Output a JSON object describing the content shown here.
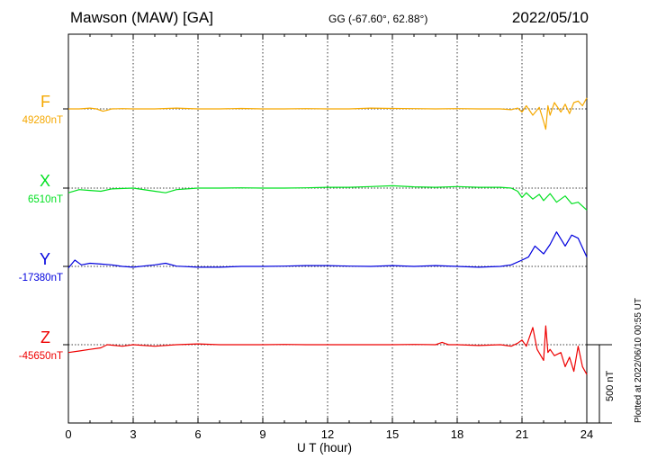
{
  "header": {
    "station": "Mawson (MAW)  [GA]",
    "coords": "GG (-67.60°,  62.88°)",
    "date": "2022/05/10"
  },
  "footer": {
    "xlabel": "U T (hour)",
    "plotted": "Plotted at 2022/06/10 00:55 UT"
  },
  "scale_bar": {
    "label": "500 nT",
    "value_nT": 500
  },
  "colors": {
    "F": "#f5a800",
    "X": "#00e020",
    "Y": "#0000dd",
    "Z": "#ee0000"
  },
  "chart_data": {
    "type": "line",
    "title": "Mawson (MAW)  [GA]",
    "xlabel": "U T (hour)",
    "ylabel": "",
    "xlim": [
      0,
      24
    ],
    "x_ticks": [
      "0",
      "3",
      "6",
      "9",
      "12",
      "15",
      "18",
      "21",
      "24"
    ],
    "grid": "vertical dotted every 3 h; dotted baseline per component",
    "series": [
      {
        "name": "F",
        "baseline_label": "49280nT",
        "baseline_nT": 49280,
        "color": "#f5a800",
        "x": [
          0,
          0.5,
          1,
          1.3,
          1.6,
          1.8,
          2,
          2.5,
          3,
          4,
          5,
          6,
          7,
          8,
          9,
          10,
          11,
          12,
          13,
          14,
          15,
          16,
          17,
          18,
          19,
          20,
          20.5,
          20.8,
          21,
          21.2,
          21.5,
          21.8,
          22,
          22.1,
          22.2,
          22.3,
          22.5,
          22.8,
          23,
          23.2,
          23.4,
          23.6,
          23.8,
          24
        ],
        "values": [
          49280,
          49280,
          49285,
          49280,
          49265,
          49272,
          49280,
          49282,
          49280,
          49280,
          49285,
          49280,
          49280,
          49283,
          49280,
          49280,
          49282,
          49280,
          49280,
          49285,
          49283,
          49282,
          49280,
          49282,
          49280,
          49280,
          49275,
          49285,
          49260,
          49300,
          49240,
          49290,
          49200,
          49150,
          49300,
          49240,
          49320,
          49260,
          49310,
          49250,
          49320,
          49330,
          49300,
          49350
        ]
      },
      {
        "name": "X",
        "baseline_label": "6510nT",
        "baseline_nT": 6510,
        "color": "#00e020",
        "x": [
          0,
          0.5,
          1,
          1.5,
          2,
          3,
          4,
          4.5,
          5,
          6,
          7,
          8,
          9,
          10,
          11,
          12,
          13,
          14,
          15,
          16,
          17,
          18,
          19,
          20,
          20.5,
          20.8,
          21,
          21.2,
          21.5,
          21.8,
          22,
          22.3,
          22.6,
          23,
          23.3,
          23.6,
          24
        ],
        "values": [
          6480,
          6500,
          6495,
          6490,
          6505,
          6510,
          6490,
          6480,
          6500,
          6510,
          6510,
          6512,
          6510,
          6510,
          6512,
          6515,
          6515,
          6520,
          6525,
          6518,
          6515,
          6520,
          6515,
          6515,
          6510,
          6490,
          6450,
          6480,
          6440,
          6470,
          6430,
          6475,
          6420,
          6460,
          6410,
          6420,
          6370
        ]
      },
      {
        "name": "Y",
        "baseline_label": "-17380nT",
        "baseline_nT": -17380,
        "color": "#0000dd",
        "x": [
          0,
          0.3,
          0.6,
          1,
          1.5,
          2,
          2.5,
          3,
          4,
          4.5,
          5,
          6,
          7,
          8,
          9,
          10,
          11,
          12,
          13,
          14,
          15,
          16,
          17,
          18,
          19,
          20,
          20.5,
          21,
          21.3,
          21.6,
          22,
          22.3,
          22.6,
          23,
          23.3,
          23.6,
          24
        ],
        "values": [
          -17390,
          -17340,
          -17370,
          -17360,
          -17365,
          -17370,
          -17380,
          -17385,
          -17370,
          -17360,
          -17378,
          -17385,
          -17385,
          -17380,
          -17380,
          -17378,
          -17375,
          -17375,
          -17378,
          -17380,
          -17375,
          -17380,
          -17375,
          -17380,
          -17385,
          -17380,
          -17370,
          -17340,
          -17320,
          -17250,
          -17300,
          -17240,
          -17160,
          -17250,
          -17180,
          -17200,
          -17320
        ]
      },
      {
        "name": "Z",
        "baseline_label": "-45650nT",
        "baseline_nT": -45650,
        "color": "#ee0000",
        "x": [
          0,
          0.5,
          1,
          1.5,
          1.8,
          2.5,
          3,
          4,
          5,
          6,
          7,
          8,
          9,
          10,
          11,
          12,
          13,
          14,
          15,
          16,
          17,
          17.3,
          17.6,
          18,
          19,
          20,
          20.5,
          20.8,
          21,
          21.2,
          21.5,
          21.7,
          22,
          22.1,
          22.2,
          22.3,
          22.5,
          22.8,
          23,
          23.2,
          23.4,
          23.6,
          23.8,
          24
        ],
        "values": [
          -45700,
          -45690,
          -45680,
          -45670,
          -45650,
          -45660,
          -45650,
          -45660,
          -45650,
          -45645,
          -45650,
          -45650,
          -45650,
          -45648,
          -45650,
          -45650,
          -45650,
          -45650,
          -45650,
          -45648,
          -45650,
          -45635,
          -45650,
          -45650,
          -45655,
          -45650,
          -45660,
          -45640,
          -45620,
          -45660,
          -45540,
          -45680,
          -45750,
          -45530,
          -45700,
          -45680,
          -45720,
          -45700,
          -45790,
          -45730,
          -45820,
          -45660,
          -45790,
          -45840
        ]
      }
    ]
  }
}
